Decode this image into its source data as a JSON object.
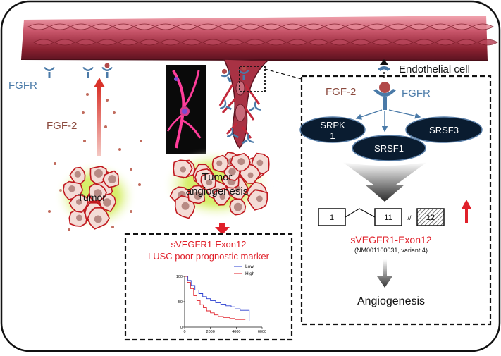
{
  "labels": {
    "fgfr_left": "FGFR",
    "fgf2_left": "FGF-2",
    "endothelial_cell": "Endothelial cell",
    "fgf2_right": "FGF-2",
    "fgfr_right": "FGFR",
    "tumor": "Tumor",
    "tumor_angio_line1": "Tumor",
    "tumor_angio_line2": "angiogenesis"
  },
  "splicing_factors": {
    "srpk1_line1": "SRPK",
    "srpk1_line2": "1",
    "srsf1": "SRSF1",
    "srsf3": "SRSF3"
  },
  "gene": {
    "exon_a": "1",
    "exon_b": "11",
    "exon_c": "12",
    "name": "sVEGFR1-Exon12",
    "accession": "(NM001160031, variant 4)"
  },
  "outcome": {
    "angiogenesis": "Angiogenesis"
  },
  "marker_box": {
    "line1": "sVEGFR1-Exon12",
    "line2": "LUSC poor prognostic marker"
  },
  "colors": {
    "fgfr_blue": "#4a7aa8",
    "fgf2_brown": "#8b4a3e",
    "highlight_red": "#e0202a",
    "factor_fill": "#0a1c30"
  },
  "chart_data": {
    "type": "line",
    "title": "",
    "xlabel": "",
    "ylabel": "",
    "xlim": [
      0,
      6000
    ],
    "ylim": [
      0,
      100
    ],
    "x_ticks": [
      "0",
      "2000",
      "4000",
      "6000"
    ],
    "y_ticks": [
      "0",
      "50",
      "100"
    ],
    "legend_position": "top-right",
    "series": [
      {
        "name": "Low",
        "color": "#2a3fd0",
        "x": [
          0,
          250,
          500,
          800,
          1100,
          1400,
          1700,
          2000,
          2400,
          2800,
          3200,
          3600,
          3900,
          4300,
          4700,
          5000,
          5200
        ],
        "y": [
          100,
          92,
          82,
          73,
          66,
          60,
          56,
          52,
          48,
          45,
          42,
          40,
          36,
          33,
          33,
          12,
          12
        ]
      },
      {
        "name": "High",
        "color": "#e0202a",
        "x": [
          0,
          200,
          450,
          700,
          950,
          1200,
          1450,
          1700,
          2000,
          2300,
          2600,
          3000,
          3500,
          3900,
          4300,
          4700
        ],
        "y": [
          100,
          88,
          76,
          62,
          52,
          44,
          38,
          32,
          28,
          24,
          21,
          19,
          17,
          15,
          15,
          15
        ]
      }
    ]
  }
}
